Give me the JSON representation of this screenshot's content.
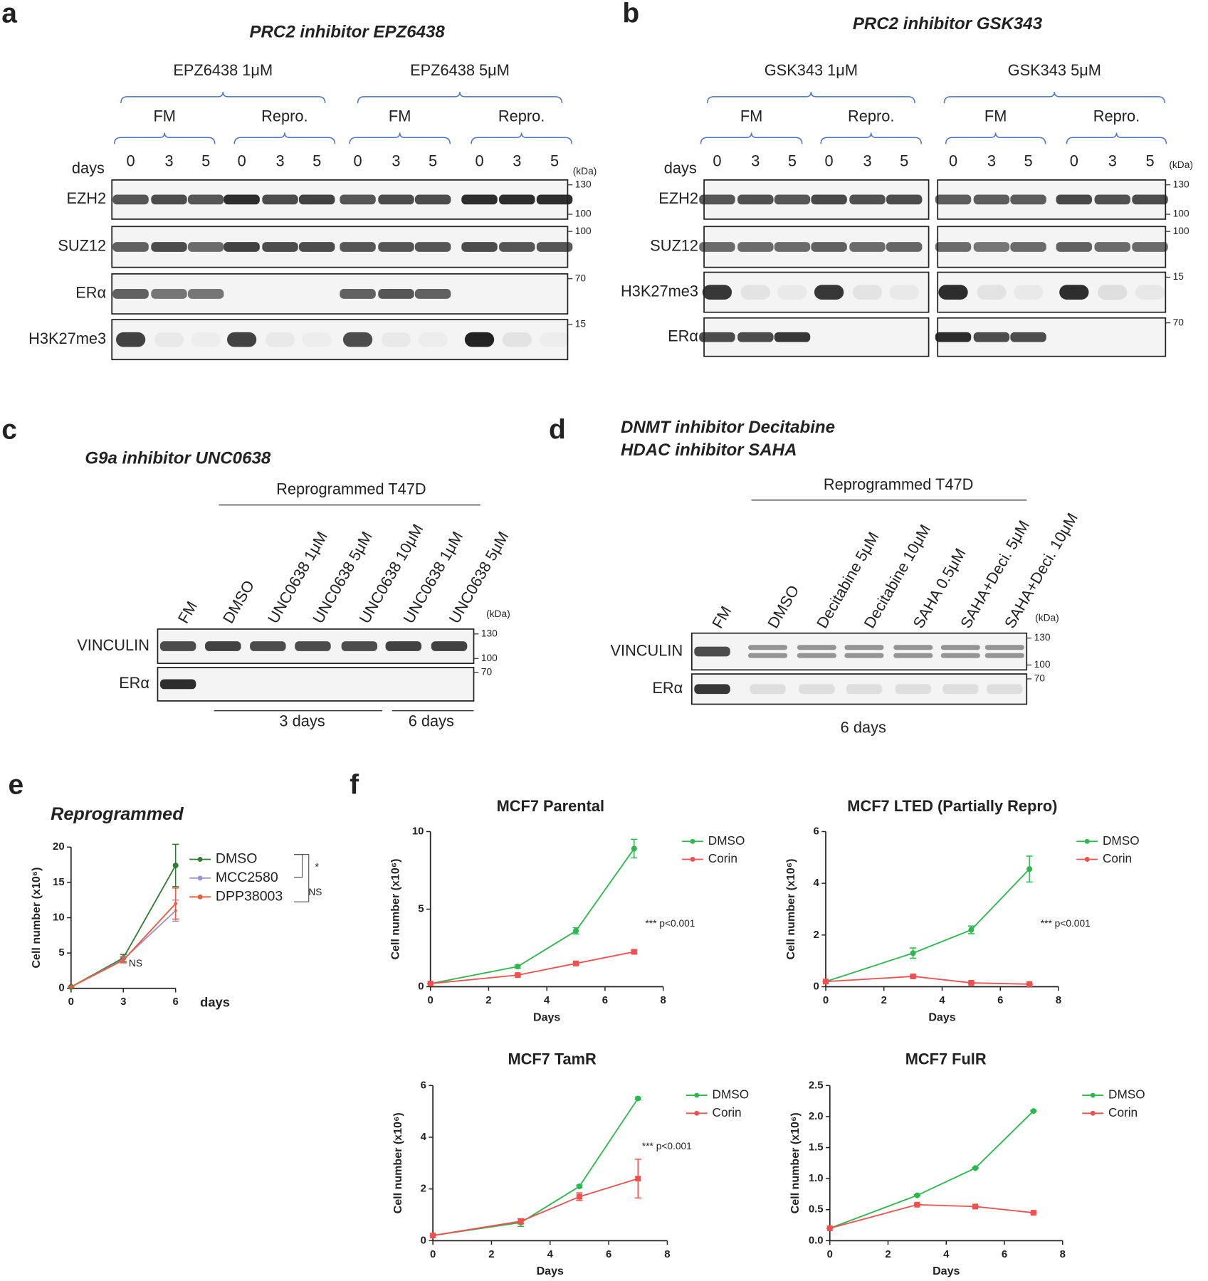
{
  "blots": [
    {
      "panel": "a",
      "title": "PRC2 inhibitor EPZ6438",
      "groups": [
        "EPZ6438 1μM",
        "EPZ6438 5μM"
      ],
      "subgroups": [
        "FM",
        "Repro.",
        "FM",
        "Repro."
      ],
      "days_label": "days",
      "lanes": [
        "0",
        "3",
        "5",
        "0",
        "3",
        "5",
        "0",
        "3",
        "5",
        "0",
        "3",
        "5"
      ],
      "kda_label": "(kDa)",
      "rows": [
        {
          "label": "EZH2",
          "markers": [
            130,
            100
          ]
        },
        {
          "label": "SUZ12",
          "markers": [
            100
          ]
        },
        {
          "label": "ERα",
          "markers": [
            70
          ]
        },
        {
          "label": "H3K27me3",
          "markers": [
            15
          ]
        }
      ]
    },
    {
      "panel": "b",
      "title": "PRC2 inhibitor GSK343",
      "groups": [
        "GSK343 1μM",
        "GSK343 5μM"
      ],
      "subgroups": [
        "FM",
        "Repro.",
        "FM",
        "Repro."
      ],
      "days_label": "days",
      "lanes": [
        "0",
        "3",
        "5",
        "0",
        "3",
        "5",
        "0",
        "3",
        "5",
        "0",
        "3",
        "5"
      ],
      "kda_label": "(kDa)",
      "rows": [
        {
          "label": "EZH2",
          "markers": [
            130,
            100
          ]
        },
        {
          "label": "SUZ12",
          "markers": [
            100
          ]
        },
        {
          "label": "H3K27me3",
          "markers": [
            15
          ]
        },
        {
          "label": "ERα",
          "markers": [
            70
          ]
        }
      ]
    },
    {
      "panel": "c",
      "title": "G9a inhibitor UNC0638",
      "header": "Reprogrammed T47D",
      "lanes": [
        "FM",
        "DMSO",
        "UNC0638 1μM",
        "UNC0638 5μM",
        "UNC0638 10μM",
        "UNC0638 1μM",
        "UNC0638 5μM"
      ],
      "kda_label": "(kDa)",
      "rows": [
        {
          "label": "VINCULIN",
          "markers": [
            130,
            100
          ]
        },
        {
          "label": "ERα",
          "markers": [
            70
          ]
        }
      ],
      "durations": [
        "3 days",
        "6 days"
      ]
    },
    {
      "panel": "d",
      "title_lines": [
        "DNMT inhibitor Decitabine",
        "HDAC inhibitor SAHA"
      ],
      "header": "Reprogrammed T47D",
      "lanes": [
        "FM",
        "DMSO",
        "Decitabine 5μM",
        "Decitabine 10μM",
        "SAHA 0.5μM",
        "SAHA+Deci. 5μM",
        "SAHA+Deci. 10μM"
      ],
      "kda_label": "(kDa)",
      "rows": [
        {
          "label": "VINCULIN",
          "markers": [
            130,
            100
          ]
        },
        {
          "label": "ERα",
          "markers": [
            70
          ]
        }
      ],
      "durations": [
        "6 days"
      ]
    }
  ],
  "chart_data": [
    {
      "type": "line",
      "panel": "e",
      "title": "Reprogrammed",
      "ylabel": "Cell number (x10⁶)",
      "xlabel": "days",
      "x": [
        0,
        3,
        6
      ],
      "xlim": [
        0,
        6
      ],
      "xticks": [
        0,
        3,
        6
      ],
      "ylim": [
        0,
        20
      ],
      "yticks": [
        0,
        5,
        10,
        15,
        20
      ],
      "series": [
        {
          "name": "DMSO",
          "color": "#2e7d32",
          "values": [
            0.2,
            4.3,
            17.4
          ],
          "errors": [
            0,
            0.5,
            3
          ]
        },
        {
          "name": "MCC2580",
          "color": "#9b8fd6",
          "values": [
            0.2,
            4.1,
            11
          ],
          "errors": [
            0,
            0.4,
            1.5
          ]
        },
        {
          "name": "DPP38003",
          "color": "#f05a3a",
          "values": [
            0.2,
            4.0,
            12
          ],
          "errors": [
            0,
            0.4,
            2.2
          ]
        }
      ],
      "annotations": [
        "*",
        "NS",
        "NS"
      ]
    },
    {
      "type": "line",
      "panel": "f",
      "title": "MCF7 Parental",
      "ylabel": "Cell number (x10⁶)",
      "xlabel": "Days",
      "x": [
        0,
        3,
        5,
        7
      ],
      "xlim": [
        0,
        8
      ],
      "xticks": [
        0,
        2,
        4,
        6,
        8
      ],
      "ylim": [
        0,
        10
      ],
      "yticks": [
        0,
        5,
        10
      ],
      "series": [
        {
          "name": "DMSO",
          "color": "#2db84d",
          "values": [
            0.2,
            1.3,
            3.6,
            8.9
          ],
          "errors": [
            0,
            0.1,
            0.2,
            0.6
          ]
        },
        {
          "name": "Corin",
          "color": "#f05050",
          "values": [
            0.2,
            0.75,
            1.5,
            2.25
          ],
          "errors": [
            0,
            0.05,
            0.08,
            0.1
          ]
        }
      ],
      "annotations": [
        "*** p<0.001"
      ]
    },
    {
      "type": "line",
      "title": "MCF7 LTED (Partially Repro)",
      "ylabel": "Cell number (x10⁶)",
      "xlabel": "Days",
      "x": [
        0,
        3,
        5,
        7
      ],
      "xlim": [
        0,
        8
      ],
      "xticks": [
        0,
        2,
        4,
        6,
        8
      ],
      "ylim": [
        0,
        6
      ],
      "yticks": [
        0,
        2,
        4,
        6
      ],
      "series": [
        {
          "name": "DMSO",
          "color": "#2db84d",
          "values": [
            0.2,
            1.3,
            2.2,
            4.55
          ],
          "errors": [
            0,
            0.2,
            0.15,
            0.5
          ]
        },
        {
          "name": "Corin",
          "color": "#f05050",
          "values": [
            0.2,
            0.4,
            0.15,
            0.1
          ],
          "errors": [
            0,
            0.03,
            0.03,
            0.03
          ]
        }
      ],
      "annotations": [
        "*** p<0.001"
      ]
    },
    {
      "type": "line",
      "title": "MCF7 TamR",
      "ylabel": "Cell number (x10⁶)",
      "xlabel": "Days",
      "x": [
        0,
        3,
        5,
        7
      ],
      "xlim": [
        0,
        8
      ],
      "xticks": [
        0,
        2,
        4,
        6,
        8
      ],
      "ylim": [
        0,
        6
      ],
      "yticks": [
        0,
        2,
        4,
        6
      ],
      "series": [
        {
          "name": "DMSO",
          "color": "#2db84d",
          "values": [
            0.2,
            0.7,
            2.1,
            5.5
          ],
          "errors": [
            0,
            0.15,
            0.05,
            0.05
          ]
        },
        {
          "name": "Corin",
          "color": "#f05050",
          "values": [
            0.2,
            0.75,
            1.7,
            2.4
          ],
          "errors": [
            0,
            0.1,
            0.15,
            0.75
          ]
        }
      ],
      "annotations": [
        "*** p<0.001"
      ]
    },
    {
      "type": "line",
      "title": "MCF7 FulR",
      "ylabel": "Cell number (x10⁶)",
      "xlabel": "Days",
      "x": [
        0,
        3,
        5,
        7
      ],
      "xlim": [
        0,
        8
      ],
      "xticks": [
        0,
        2,
        4,
        6,
        8
      ],
      "ylim": [
        0,
        2.5
      ],
      "yticks": [
        {
          "value": 0,
          "label": "0.0"
        },
        0.5,
        {
          "value": 1,
          "label": "1.0"
        },
        1.5,
        {
          "value": 2,
          "label": "2.0"
        },
        2.5
      ],
      "series": [
        {
          "name": "DMSO",
          "color": "#2db84d",
          "values": [
            0.2,
            0.73,
            1.17,
            2.09
          ],
          "errors": [
            0,
            0.01,
            0.01,
            0.01
          ]
        },
        {
          "name": "Corin",
          "color": "#f05050",
          "values": [
            0.2,
            0.58,
            0.55,
            0.45
          ],
          "errors": [
            0,
            0.01,
            0.01,
            0.01
          ]
        }
      ]
    }
  ]
}
